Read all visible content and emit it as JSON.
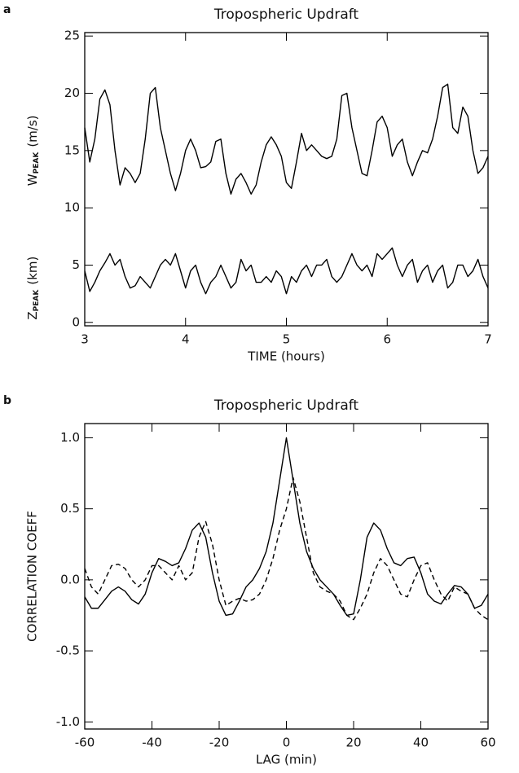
{
  "chart_data": [
    {
      "type": "line",
      "panel": "a",
      "title": "Tropospheric Updraft",
      "xlabel": "TIME (hours)",
      "ylabels": [
        {
          "symbol": "W",
          "subscript": "PEAK",
          "unit": "(m/s)"
        },
        {
          "symbol": "Z",
          "subscript": "PEAK",
          "unit": "(km)"
        }
      ],
      "xlim": [
        3,
        7
      ],
      "xticks": [
        3,
        4,
        5,
        6,
        7
      ],
      "ylim": [
        -0.3,
        25.3
      ],
      "yticks": [
        0,
        5,
        10,
        15,
        20,
        25
      ],
      "x": [
        3.0,
        3.05,
        3.1,
        3.15,
        3.2,
        3.25,
        3.3,
        3.35,
        3.4,
        3.45,
        3.5,
        3.55,
        3.6,
        3.65,
        3.7,
        3.75,
        3.8,
        3.85,
        3.9,
        3.95,
        4.0,
        4.05,
        4.1,
        4.15,
        4.2,
        4.25,
        4.3,
        4.35,
        4.4,
        4.45,
        4.5,
        4.55,
        4.6,
        4.65,
        4.7,
        4.75,
        4.8,
        4.85,
        4.9,
        4.95,
        5.0,
        5.05,
        5.1,
        5.15,
        5.2,
        5.25,
        5.3,
        5.35,
        5.4,
        5.45,
        5.5,
        5.55,
        5.6,
        5.65,
        5.7,
        5.75,
        5.8,
        5.85,
        5.9,
        5.95,
        6.0,
        6.05,
        6.1,
        6.15,
        6.2,
        6.25,
        6.3,
        6.35,
        6.4,
        6.45,
        6.5,
        6.55,
        6.6,
        6.65,
        6.7,
        6.75,
        6.8,
        6.85,
        6.9,
        6.95,
        7.0
      ],
      "series": [
        {
          "color": "#000000",
          "linestyle": "solid",
          "values": [
            17,
            14,
            16,
            19.5,
            20.3,
            19,
            15,
            12,
            13.5,
            13,
            12.2,
            13,
            16,
            20,
            20.5,
            17,
            15,
            13,
            11.5,
            13,
            15,
            16,
            15,
            13.5,
            13.6,
            14,
            15.8,
            16,
            13,
            11.2,
            12.5,
            13,
            12.2,
            11.2,
            12,
            14,
            15.5,
            16.2,
            15.5,
            14.5,
            12.2,
            11.7,
            14,
            16.5,
            15,
            15.5,
            15,
            14.5,
            14.3,
            14.5,
            16,
            19.8,
            20,
            17,
            15,
            13,
            12.8,
            15,
            17.5,
            18,
            17,
            14.5,
            15.5,
            16,
            14,
            12.8,
            14,
            15,
            14.8,
            16,
            18,
            20.5,
            20.8,
            17,
            16.5,
            18.8,
            18,
            15,
            13,
            13.5,
            14.5
          ]
        },
        {
          "color": "#000000",
          "linestyle": "solid",
          "values": [
            4.5,
            2.7,
            3.5,
            4.5,
            5.2,
            6,
            5,
            5.5,
            4,
            3,
            3.2,
            4,
            3.5,
            3,
            4,
            5,
            5.5,
            5,
            6,
            4.5,
            3,
            4.5,
            5,
            3.5,
            2.5,
            3.5,
            4,
            5,
            4,
            3,
            3.5,
            5.5,
            4.5,
            5,
            3.5,
            3.5,
            4,
            3.5,
            4.5,
            4,
            2.5,
            4,
            3.5,
            4.5,
            5,
            4,
            5,
            5,
            5.5,
            4,
            3.5,
            4,
            5,
            6,
            5,
            4.5,
            5,
            4,
            6,
            5.5,
            6,
            6.5,
            5,
            4,
            5,
            5.5,
            3.5,
            4.5,
            5,
            3.5,
            4.5,
            5,
            3,
            3.5,
            5,
            5,
            4,
            4.5,
            5.5,
            4,
            3
          ]
        }
      ]
    },
    {
      "type": "line",
      "panel": "b",
      "title": "Tropospheric Updraft",
      "xlabel": "LAG (min)",
      "ylabel": "CORRELATION COEFF",
      "xlim": [
        -60,
        60
      ],
      "xticks": [
        -60,
        -40,
        -20,
        0,
        20,
        40,
        60
      ],
      "ylim": [
        -1.05,
        1.1
      ],
      "yticks": [
        {
          "value": 1,
          "label": "1.0"
        },
        {
          "value": 0.5,
          "label": "0.5"
        },
        {
          "value": 0,
          "label": "0.0"
        },
        {
          "value": -0.5,
          "label": "-0.5"
        },
        {
          "value": -1,
          "label": "-1.0"
        }
      ],
      "x": [
        -60,
        -58,
        -56,
        -54,
        -52,
        -50,
        -48,
        -46,
        -44,
        -42,
        -40,
        -38,
        -36,
        -34,
        -32,
        -30,
        -28,
        -26,
        -24,
        -22,
        -20,
        -18,
        -16,
        -14,
        -12,
        -10,
        -8,
        -6,
        -4,
        -2,
        0,
        2,
        4,
        6,
        8,
        10,
        12,
        14,
        16,
        18,
        20,
        22,
        24,
        26,
        28,
        30,
        32,
        34,
        36,
        38,
        40,
        42,
        44,
        46,
        48,
        50,
        52,
        54,
        56,
        58,
        60
      ],
      "series": [
        {
          "color": "#000000",
          "linestyle": "solid",
          "values": [
            -0.12,
            -0.2,
            -0.2,
            -0.14,
            -0.08,
            -0.05,
            -0.08,
            -0.14,
            -0.17,
            -0.1,
            0.05,
            0.15,
            0.13,
            0.1,
            0.12,
            0.22,
            0.35,
            0.4,
            0.3,
            0.05,
            -0.15,
            -0.25,
            -0.24,
            -0.15,
            -0.05,
            0.0,
            0.08,
            0.2,
            0.4,
            0.7,
            1.0,
            0.7,
            0.4,
            0.2,
            0.08,
            0.0,
            -0.05,
            -0.1,
            -0.18,
            -0.25,
            -0.24,
            0.0,
            0.3,
            0.4,
            0.35,
            0.22,
            0.12,
            0.1,
            0.15,
            0.16,
            0.05,
            -0.1,
            -0.15,
            -0.17,
            -0.1,
            -0.04,
            -0.05,
            -0.1,
            -0.2,
            -0.18,
            -0.1
          ]
        },
        {
          "color": "#000000",
          "linestyle": "dashed",
          "values": [
            0.08,
            -0.05,
            -0.1,
            0.0,
            0.1,
            0.11,
            0.08,
            0.0,
            -0.05,
            0.0,
            0.1,
            0.1,
            0.05,
            0.0,
            0.1,
            0.0,
            0.05,
            0.3,
            0.41,
            0.25,
            0.0,
            -0.18,
            -0.15,
            -0.13,
            -0.15,
            -0.14,
            -0.1,
            0.0,
            0.15,
            0.35,
            0.5,
            0.72,
            0.55,
            0.3,
            0.05,
            -0.05,
            -0.08,
            -0.1,
            -0.15,
            -0.25,
            -0.28,
            -0.2,
            -0.1,
            0.05,
            0.15,
            0.1,
            0.0,
            -0.1,
            -0.12,
            0.0,
            0.1,
            0.12,
            0.0,
            -0.1,
            -0.15,
            -0.05,
            -0.08,
            -0.1,
            -0.2,
            -0.25,
            -0.28
          ]
        }
      ]
    }
  ]
}
